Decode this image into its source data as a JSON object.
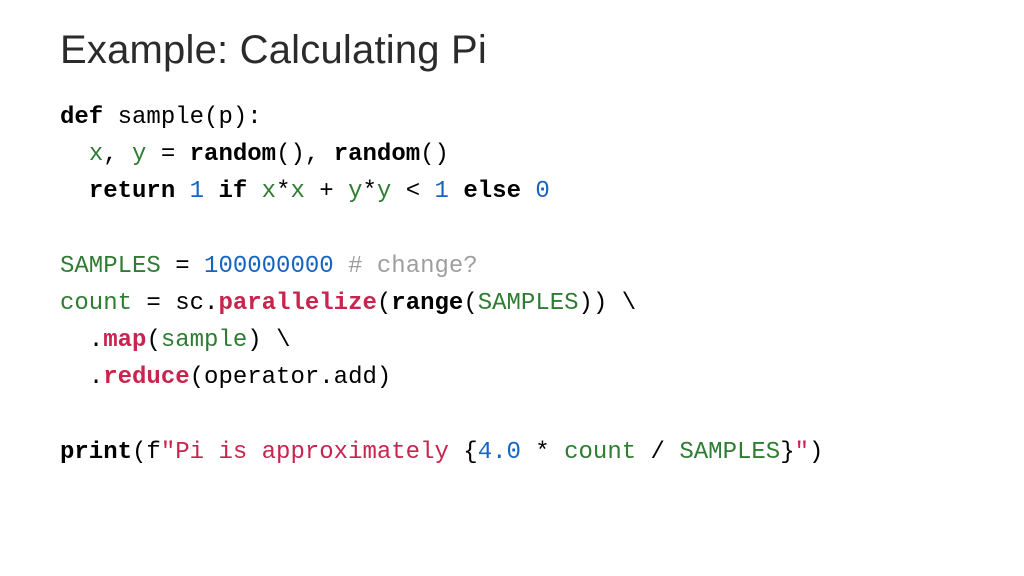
{
  "slide": {
    "title": "Example: Calculating Pi",
    "title_fontsize": 40,
    "title_color": "#2b2b2b",
    "background_color": "#ffffff"
  },
  "code_style": {
    "font_family": "Consolas",
    "font_size": 24,
    "line_height": 1.55,
    "colors": {
      "keyword": "#000000",
      "method": "#c7254e",
      "variable": "#2e7d32",
      "number": "#1565c0",
      "string": "#c7254e",
      "comment": "#9e9e9e",
      "plain": "#000000"
    },
    "keyword_bold": true,
    "method_bold": true
  },
  "code": {
    "l1": {
      "def": "def",
      "sp": " ",
      "sample": "sample",
      "open": "(",
      "p": "p",
      "close": "):"
    },
    "l2": {
      "indent": "  ",
      "x": "x",
      "c1": ", ",
      "y": "y",
      "eq": " = ",
      "rand1": "random",
      "p1": "()",
      "c2": ", ",
      "rand2": "random",
      "p2": "()"
    },
    "l3": {
      "indent": "  ",
      "ret": "return",
      "sp1": " ",
      "one": "1",
      "sp2": " ",
      "if": "if",
      "sp3": " ",
      "x1": "x",
      "s1": "*",
      "x2": "x",
      "s2": " + ",
      "y1": "y",
      "s3": "*",
      "y2": "y",
      "s4": " < ",
      "one2": "1",
      "sp4": " ",
      "else": "else",
      "sp5": " ",
      "zero": "0"
    },
    "l4": {
      "blank": ""
    },
    "l5": {
      "SAMPLES": "SAMPLES",
      "eq": " = ",
      "val": "100000000",
      "sp": " ",
      "cmt": "# change?"
    },
    "l6": {
      "count": "count",
      "eq": " = ",
      "sc": "sc",
      "dot": ".",
      "par": "parallelize",
      "open": "(",
      "range": "range",
      "open2": "(",
      "SAMPLES": "SAMPLES",
      "close": "))",
      "cont": " \\"
    },
    "l7": {
      "indent": "  ",
      "dot": ".",
      "map": "map",
      "open": "(",
      "sample": "sample",
      "close": ")",
      "cont": " \\"
    },
    "l8": {
      "indent": "  ",
      "dot": ".",
      "reduce": "reduce",
      "open": "(",
      "opadd": "operator.add",
      "close": ")"
    },
    "l9": {
      "blank": ""
    },
    "l10": {
      "print": "print",
      "open": "(",
      "f": "f",
      "q1": "\"",
      "s1": "Pi is approximately ",
      "b1": "{",
      "four": "4.0",
      "s2": " * ",
      "count": "count",
      "s3": " / ",
      "SAMPLES": "SAMPLES",
      "b2": "}",
      "q2": "\"",
      "close": ")"
    }
  }
}
